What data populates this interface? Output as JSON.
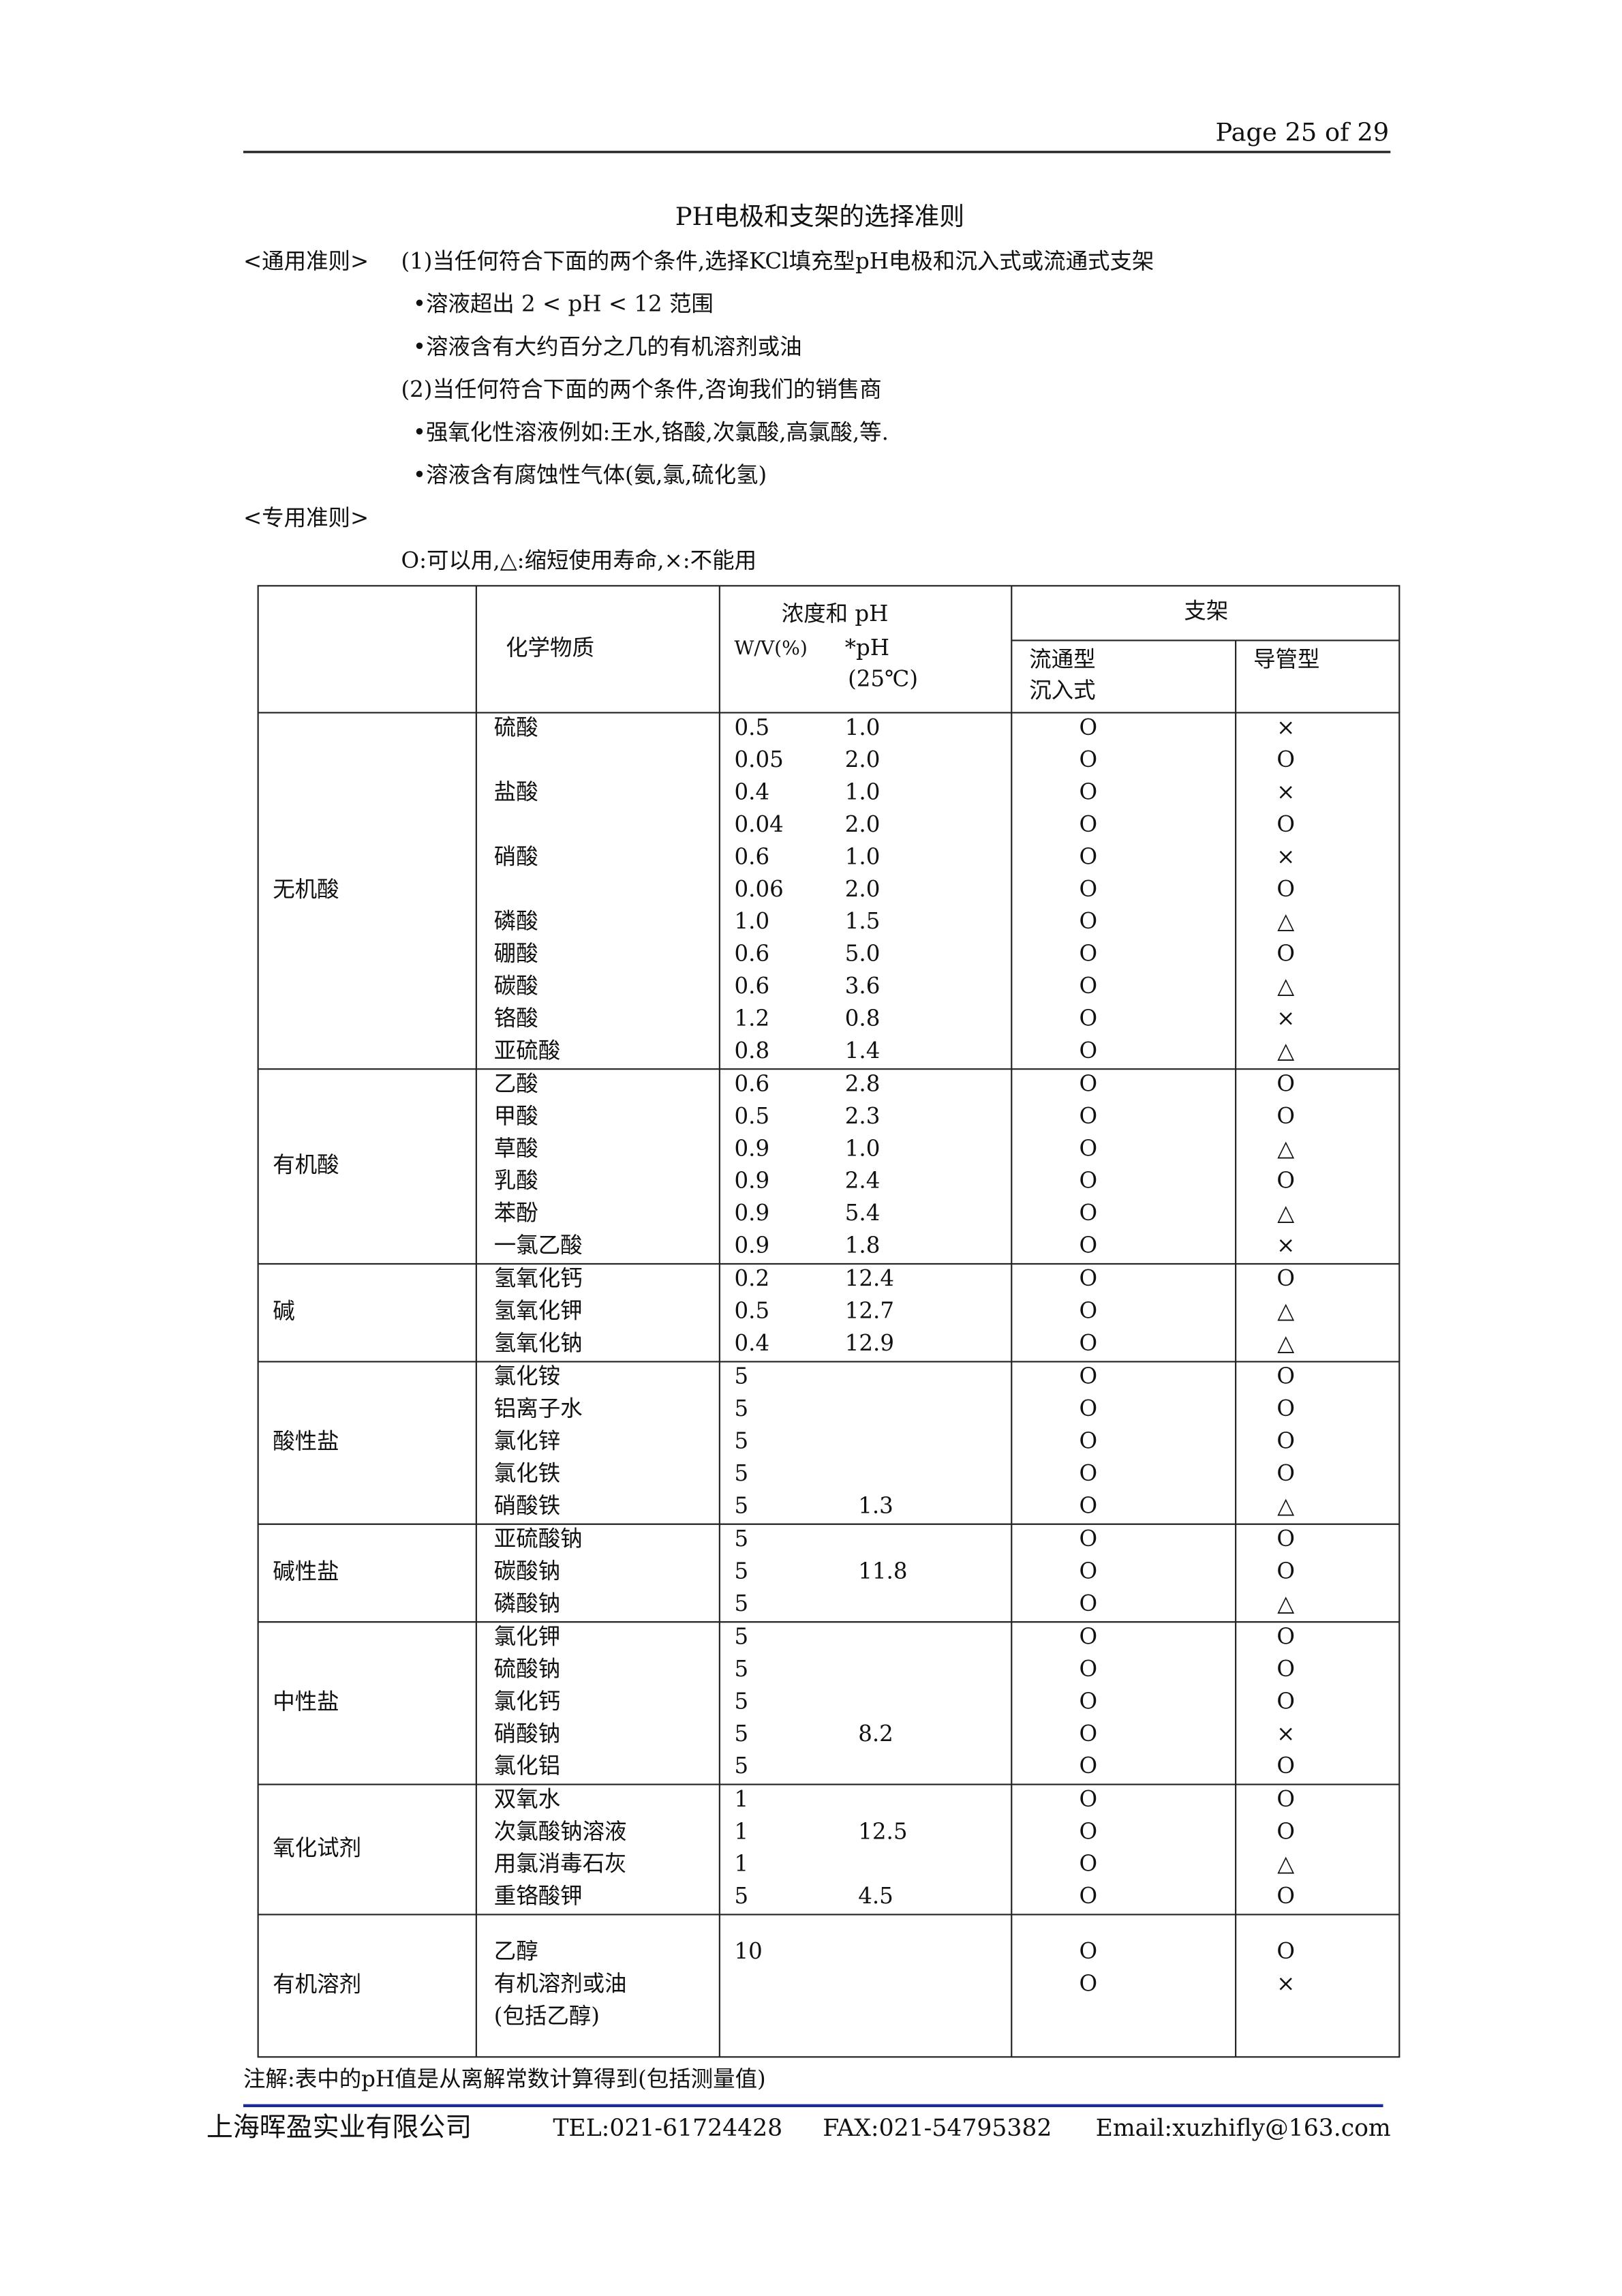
{
  "header": {
    "page": "Page 25 of 29"
  },
  "title": "PH电极和支架的选择准则",
  "general": {
    "label": "<通用准则>",
    "items": [
      "(1)当任何符合下面的两个条件,选择KCl填充型pH电极和沉入式或流通式支架",
      "•溶液超出 2 < pH < 12 范围",
      "•溶液含有大约百分之几的有机溶剂或油",
      "(2)当任何符合下面的两个条件,咨询我们的销售商",
      "•强氧化性溶液例如:王水,铬酸,次氯酸,高氯酸,等.",
      "•溶液含有腐蚀性气体(氨,氯,硫化氢)"
    ]
  },
  "special": {
    "label": "<专用准则>",
    "legend": "O:可以用,△:缩短使用寿命,×:不能用"
  },
  "table": {
    "headers": {
      "chemical": "化学物质",
      "conc": "浓度和 pH",
      "wv": "W/V(%)",
      "ph": "*pH",
      "temp": "(25℃)",
      "support": "支架",
      "flow": "流通型",
      "sink": "沉入式",
      "pipe": "导管型"
    },
    "groups": [
      {
        "name": "无机酸",
        "rows": [
          {
            "c": "硫酸",
            "w": "0.5",
            "p": "1.0",
            "f": "O",
            "t": "×"
          },
          {
            "w": "0.05",
            "p": "2.0",
            "f": "O",
            "t": "O"
          },
          {
            "c": "盐酸",
            "w": "0.4",
            "p": "1.0",
            "f": "O",
            "t": "×"
          },
          {
            "w": "0.04",
            "p": "2.0",
            "f": "O",
            "t": "O"
          },
          {
            "c": "硝酸",
            "w": "0.6",
            "p": "1.0",
            "f": "O",
            "t": "×"
          },
          {
            "w": "0.06",
            "p": "2.0",
            "f": "O",
            "t": "O"
          },
          {
            "c": "磷酸",
            "w": "1.0",
            "p": "1.5",
            "f": "O",
            "t": "△"
          },
          {
            "c": "硼酸",
            "w": "0.6",
            "p": "5.0",
            "f": "O",
            "t": "O"
          },
          {
            "c": "碳酸",
            "w": "0.6",
            "p": "3.6",
            "f": "O",
            "t": "△"
          },
          {
            "c": "铬酸",
            "w": "1.2",
            "p": "0.8",
            "f": "O",
            "t": "×"
          },
          {
            "c": "亚硫酸",
            "w": "0.8",
            "p": "1.4",
            "f": "O",
            "t": "△"
          }
        ]
      },
      {
        "name": "有机酸",
        "rows": [
          {
            "c": "乙酸",
            "w": "0.6",
            "p": "2.8",
            "f": "O",
            "t": "O"
          },
          {
            "c": "甲酸",
            "w": "0.5",
            "p": "2.3",
            "f": "O",
            "t": "O"
          },
          {
            "c": "草酸",
            "w": "0.9",
            "p": "1.0",
            "f": "O",
            "t": "△"
          },
          {
            "c": "乳酸",
            "w": "0.9",
            "p": "2.4",
            "f": "O",
            "t": "O"
          },
          {
            "c": "苯酚",
            "w": "0.9",
            "p": "5.4",
            "f": "O",
            "t": "△"
          },
          {
            "c": "一氯乙酸",
            "w": "0.9",
            "p": "1.8",
            "f": "O",
            "t": "×"
          }
        ]
      },
      {
        "name": "碱",
        "rows": [
          {
            "c": "氢氧化钙",
            "w": "0.2",
            "p": "12.4",
            "f": "O",
            "t": "O"
          },
          {
            "c": "氢氧化钾",
            "w": "0.5",
            "p": "12.7",
            "f": "O",
            "t": "△"
          },
          {
            "c": "氢氧化钠",
            "w": "0.4",
            "p": "12.9",
            "f": "O",
            "t": "△"
          }
        ]
      },
      {
        "name": "酸性盐",
        "rows": [
          {
            "c": "氯化铵",
            "w": "5",
            "f": "O",
            "t": "O"
          },
          {
            "c": "铝离子水",
            "w": "5",
            "f": "O",
            "t": "O"
          },
          {
            "c": "氯化锌",
            "w": "5",
            "f": "O",
            "t": "O"
          },
          {
            "c": "氯化铁",
            "w": "5",
            "f": "O",
            "t": "O"
          },
          {
            "c": "硝酸铁",
            "w": "5",
            "p": "1.3",
            "f": "O",
            "t": "△"
          }
        ]
      },
      {
        "name": "碱性盐",
        "rows": [
          {
            "c": "亚硫酸钠",
            "w": "5",
            "f": "O",
            "t": "O"
          },
          {
            "c": "碳酸钠",
            "w": "5",
            "p": "11.8",
            "f": "O",
            "t": "O"
          },
          {
            "c": "磷酸钠",
            "w": "5",
            "f": "O",
            "t": "△"
          }
        ]
      },
      {
        "name": "中性盐",
        "rows": [
          {
            "c": "氯化钾",
            "w": "5",
            "f": "O",
            "t": "O"
          },
          {
            "c": "硫酸钠",
            "w": "5",
            "f": "O",
            "t": "O"
          },
          {
            "c": "氯化钙",
            "w": "5",
            "f": "O",
            "t": "O"
          },
          {
            "c": "硝酸钠",
            "w": "5",
            "p": "8.2",
            "f": "O",
            "t": "×"
          },
          {
            "c": "氯化铝",
            "w": "5",
            "f": "O",
            "t": "O"
          }
        ]
      },
      {
        "name": "氧化试剂",
        "rows": [
          {
            "c": "双氧水",
            "w": "1",
            "f": "O",
            "t": "O"
          },
          {
            "c": "次氯酸钠溶液",
            "w": "1",
            "p": "12.5",
            "f": "O",
            "t": "O"
          },
          {
            "c": "用氯消毒石灰",
            "w": "1",
            "f": "O",
            "t": "△"
          },
          {
            "c": "重铬酸钾",
            "w": "5",
            "p": "4.5",
            "f": "O",
            "t": "O"
          }
        ]
      },
      {
        "name": "有机溶剂",
        "rows": [
          {
            "c": "乙醇",
            "w": "10",
            "f": "O",
            "t": "O"
          },
          {
            "c": "有机溶剂或油",
            "f": "O",
            "t": "×"
          },
          {
            "c": "(包括乙醇)"
          }
        ]
      }
    ]
  },
  "note": "注解:表中的pH值是从离解常数计算得到(包括测量值)",
  "footer": {
    "company": "上海晖盈实业有限公司",
    "tel": "TEL:021-61724428",
    "fax": "FAX:021-54795382",
    "email": "Email:xuzhifly@163.com"
  }
}
